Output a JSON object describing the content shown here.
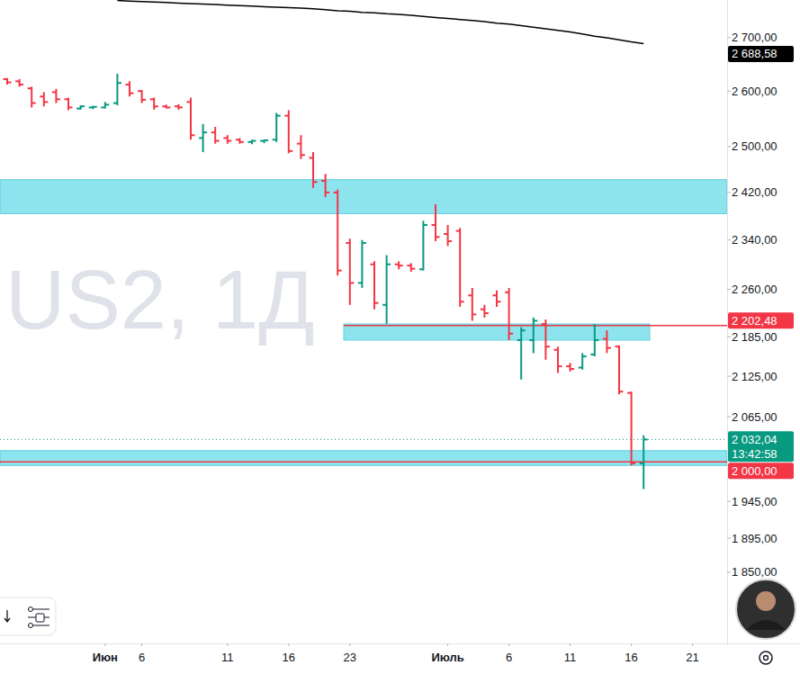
{
  "chart_data": {
    "type": "ohlc",
    "watermark": "US2, 1Д",
    "categories": [
      null,
      null,
      null,
      null,
      null,
      null,
      null,
      null,
      "Июн",
      null,
      null,
      "6",
      null,
      null,
      null,
      null,
      null,
      null,
      "11",
      null,
      null,
      null,
      null,
      "16",
      null,
      null,
      null,
      null,
      "23",
      null,
      null,
      null,
      null,
      null,
      null,
      null,
      "Июль",
      null,
      null,
      null,
      null,
      "6",
      null,
      null,
      null,
      null,
      "11",
      null,
      null,
      null,
      null,
      "16",
      null,
      null,
      null,
      null,
      "21"
    ],
    "open": [
      2622,
      2618,
      2605,
      2590,
      2598,
      2585,
      2568,
      2570,
      2570,
      2578,
      2612,
      2600,
      2585,
      2572,
      2572,
      2580,
      2515,
      2525,
      2515,
      2512,
      2508,
      2510,
      2512,
      2555,
      2505,
      2480,
      2440,
      2420,
      2335,
      2270,
      2300,
      2235,
      2300,
      2298,
      2292,
      2365,
      2350,
      2355,
      2250,
      2228,
      2250,
      2255,
      2180,
      2180,
      2205,
      2165,
      2140,
      2138,
      2158,
      2182,
      2170,
      2100,
      1998,
      null,
      null,
      null,
      null
    ],
    "high": [
      2624,
      2622,
      2608,
      2598,
      2604,
      2588,
      2574,
      2573,
      2580,
      2632,
      2618,
      2602,
      2588,
      2575,
      2576,
      2588,
      2540,
      2535,
      2520,
      2515,
      2512,
      2512,
      2560,
      2565,
      2520,
      2490,
      2452,
      2425,
      2342,
      2340,
      2305,
      2315,
      2305,
      2302,
      2372,
      2400,
      2365,
      2360,
      2262,
      2235,
      2258,
      2262,
      2200,
      2215,
      2212,
      2170,
      2145,
      2160,
      2205,
      2195,
      2172,
      2102,
      2038,
      null,
      null,
      null,
      null
    ],
    "low": [
      2612,
      2608,
      2570,
      2572,
      2578,
      2565,
      2566,
      2567,
      2568,
      2574,
      2590,
      2578,
      2566,
      2568,
      2566,
      2512,
      2490,
      2505,
      2505,
      2505,
      2504,
      2506,
      2508,
      2488,
      2478,
      2428,
      2412,
      2282,
      2235,
      2262,
      2228,
      2205,
      2292,
      2288,
      2290,
      2338,
      2330,
      2232,
      2210,
      2215,
      2232,
      2180,
      2120,
      2160,
      2150,
      2130,
      2132,
      2135,
      2155,
      2160,
      2098,
      1995,
      1962,
      null,
      null,
      null,
      null
    ],
    "close": [
      2616,
      2612,
      2578,
      2580,
      2585,
      2570,
      2572,
      2571,
      2575,
      2615,
      2596,
      2584,
      2572,
      2570,
      2570,
      2520,
      2525,
      2510,
      2510,
      2508,
      2510,
      2511,
      2555,
      2492,
      2485,
      2438,
      2420,
      2290,
      2270,
      2335,
      2238,
      2300,
      2298,
      2293,
      2365,
      2345,
      2338,
      2240,
      2220,
      2222,
      2240,
      2190,
      2195,
      2210,
      2170,
      2140,
      2136,
      2155,
      2180,
      2168,
      2102,
      1998,
      2032,
      null,
      null,
      null,
      null
    ],
    "ma": {
      "color": "#000000",
      "label": "2 688,58",
      "values": [
        null,
        null,
        null,
        null,
        null,
        null,
        null,
        null,
        null,
        2772,
        2771,
        2770,
        2769,
        2768,
        2767,
        2766,
        2765,
        2764,
        2763,
        2762,
        2761,
        2760,
        2759,
        2758,
        2757,
        2756,
        2754,
        2752,
        2751,
        2749,
        2748,
        2746,
        2745,
        2743,
        2741,
        2739,
        2737,
        2735,
        2733,
        2731,
        2728,
        2726,
        2723,
        2720,
        2717,
        2714,
        2711,
        2707,
        2703,
        2700,
        2696,
        2692,
        2688.58,
        null,
        null,
        null,
        null
      ]
    },
    "zones": [
      {
        "low": 2384,
        "high": 2442
      },
      {
        "low": 2180,
        "high": 2205,
        "start": 28,
        "end": 52
      },
      {
        "low": 1995,
        "high": 2016
      }
    ],
    "levels": [
      {
        "value": 2202.48,
        "label": "2 202,48",
        "start": 28,
        "color": "#f23645"
      },
      {
        "value": 2000,
        "label": "2 000,00",
        "color": "#f23645"
      }
    ],
    "last_price": {
      "value": 2032.04,
      "label": "2 032,04",
      "countdown": "13:42:58"
    },
    "ylim": [
      1759,
      2773
    ],
    "log": "y",
    "grid": false,
    "yticks": [
      {
        "value": 2700,
        "label": "2 700,00"
      },
      {
        "value": 2600,
        "label": "2 600,00"
      },
      {
        "value": 2500,
        "label": "2 500,00"
      },
      {
        "value": 2420,
        "label": "2 420,00"
      },
      {
        "value": 2340,
        "label": "2 340,00"
      },
      {
        "value": 2260,
        "label": "2 260,00"
      },
      {
        "value": 2185,
        "label": "2 185,00"
      },
      {
        "value": 2125,
        "label": "2 125,00"
      },
      {
        "value": 2065,
        "label": "2 065,00"
      },
      {
        "value": 1945,
        "label": "1 945,00"
      },
      {
        "value": 1895,
        "label": "1 895,00"
      },
      {
        "value": 1850,
        "label": "1 850,00"
      }
    ]
  }
}
